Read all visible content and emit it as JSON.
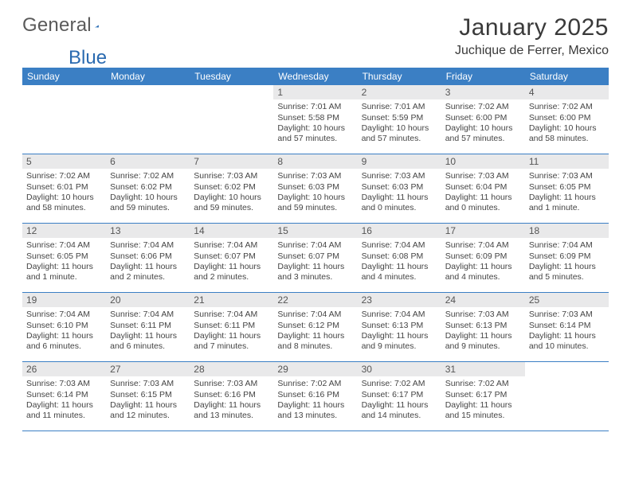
{
  "logo": {
    "text1": "General",
    "text2": "Blue"
  },
  "header": {
    "month_title": "January 2025",
    "location": "Juchique de Ferrer, Mexico"
  },
  "colors": {
    "header_blue": "#3b7fc4",
    "daynum_bg": "#e9e9ea",
    "row_border": "#3b7fc4"
  },
  "calendar": {
    "weekday_labels": [
      "Sunday",
      "Monday",
      "Tuesday",
      "Wednesday",
      "Thursday",
      "Friday",
      "Saturday"
    ],
    "weeks": [
      [
        {
          "day": "",
          "sunrise": "",
          "sunset": "",
          "daylight": ""
        },
        {
          "day": "",
          "sunrise": "",
          "sunset": "",
          "daylight": ""
        },
        {
          "day": "",
          "sunrise": "",
          "sunset": "",
          "daylight": ""
        },
        {
          "day": "1",
          "sunrise": "Sunrise: 7:01 AM",
          "sunset": "Sunset: 5:58 PM",
          "daylight": "Daylight: 10 hours and 57 minutes."
        },
        {
          "day": "2",
          "sunrise": "Sunrise: 7:01 AM",
          "sunset": "Sunset: 5:59 PM",
          "daylight": "Daylight: 10 hours and 57 minutes."
        },
        {
          "day": "3",
          "sunrise": "Sunrise: 7:02 AM",
          "sunset": "Sunset: 6:00 PM",
          "daylight": "Daylight: 10 hours and 57 minutes."
        },
        {
          "day": "4",
          "sunrise": "Sunrise: 7:02 AM",
          "sunset": "Sunset: 6:00 PM",
          "daylight": "Daylight: 10 hours and 58 minutes."
        }
      ],
      [
        {
          "day": "5",
          "sunrise": "Sunrise: 7:02 AM",
          "sunset": "Sunset: 6:01 PM",
          "daylight": "Daylight: 10 hours and 58 minutes."
        },
        {
          "day": "6",
          "sunrise": "Sunrise: 7:02 AM",
          "sunset": "Sunset: 6:02 PM",
          "daylight": "Daylight: 10 hours and 59 minutes."
        },
        {
          "day": "7",
          "sunrise": "Sunrise: 7:03 AM",
          "sunset": "Sunset: 6:02 PM",
          "daylight": "Daylight: 10 hours and 59 minutes."
        },
        {
          "day": "8",
          "sunrise": "Sunrise: 7:03 AM",
          "sunset": "Sunset: 6:03 PM",
          "daylight": "Daylight: 10 hours and 59 minutes."
        },
        {
          "day": "9",
          "sunrise": "Sunrise: 7:03 AM",
          "sunset": "Sunset: 6:03 PM",
          "daylight": "Daylight: 11 hours and 0 minutes."
        },
        {
          "day": "10",
          "sunrise": "Sunrise: 7:03 AM",
          "sunset": "Sunset: 6:04 PM",
          "daylight": "Daylight: 11 hours and 0 minutes."
        },
        {
          "day": "11",
          "sunrise": "Sunrise: 7:03 AM",
          "sunset": "Sunset: 6:05 PM",
          "daylight": "Daylight: 11 hours and 1 minute."
        }
      ],
      [
        {
          "day": "12",
          "sunrise": "Sunrise: 7:04 AM",
          "sunset": "Sunset: 6:05 PM",
          "daylight": "Daylight: 11 hours and 1 minute."
        },
        {
          "day": "13",
          "sunrise": "Sunrise: 7:04 AM",
          "sunset": "Sunset: 6:06 PM",
          "daylight": "Daylight: 11 hours and 2 minutes."
        },
        {
          "day": "14",
          "sunrise": "Sunrise: 7:04 AM",
          "sunset": "Sunset: 6:07 PM",
          "daylight": "Daylight: 11 hours and 2 minutes."
        },
        {
          "day": "15",
          "sunrise": "Sunrise: 7:04 AM",
          "sunset": "Sunset: 6:07 PM",
          "daylight": "Daylight: 11 hours and 3 minutes."
        },
        {
          "day": "16",
          "sunrise": "Sunrise: 7:04 AM",
          "sunset": "Sunset: 6:08 PM",
          "daylight": "Daylight: 11 hours and 4 minutes."
        },
        {
          "day": "17",
          "sunrise": "Sunrise: 7:04 AM",
          "sunset": "Sunset: 6:09 PM",
          "daylight": "Daylight: 11 hours and 4 minutes."
        },
        {
          "day": "18",
          "sunrise": "Sunrise: 7:04 AM",
          "sunset": "Sunset: 6:09 PM",
          "daylight": "Daylight: 11 hours and 5 minutes."
        }
      ],
      [
        {
          "day": "19",
          "sunrise": "Sunrise: 7:04 AM",
          "sunset": "Sunset: 6:10 PM",
          "daylight": "Daylight: 11 hours and 6 minutes."
        },
        {
          "day": "20",
          "sunrise": "Sunrise: 7:04 AM",
          "sunset": "Sunset: 6:11 PM",
          "daylight": "Daylight: 11 hours and 6 minutes."
        },
        {
          "day": "21",
          "sunrise": "Sunrise: 7:04 AM",
          "sunset": "Sunset: 6:11 PM",
          "daylight": "Daylight: 11 hours and 7 minutes."
        },
        {
          "day": "22",
          "sunrise": "Sunrise: 7:04 AM",
          "sunset": "Sunset: 6:12 PM",
          "daylight": "Daylight: 11 hours and 8 minutes."
        },
        {
          "day": "23",
          "sunrise": "Sunrise: 7:04 AM",
          "sunset": "Sunset: 6:13 PM",
          "daylight": "Daylight: 11 hours and 9 minutes."
        },
        {
          "day": "24",
          "sunrise": "Sunrise: 7:03 AM",
          "sunset": "Sunset: 6:13 PM",
          "daylight": "Daylight: 11 hours and 9 minutes."
        },
        {
          "day": "25",
          "sunrise": "Sunrise: 7:03 AM",
          "sunset": "Sunset: 6:14 PM",
          "daylight": "Daylight: 11 hours and 10 minutes."
        }
      ],
      [
        {
          "day": "26",
          "sunrise": "Sunrise: 7:03 AM",
          "sunset": "Sunset: 6:14 PM",
          "daylight": "Daylight: 11 hours and 11 minutes."
        },
        {
          "day": "27",
          "sunrise": "Sunrise: 7:03 AM",
          "sunset": "Sunset: 6:15 PM",
          "daylight": "Daylight: 11 hours and 12 minutes."
        },
        {
          "day": "28",
          "sunrise": "Sunrise: 7:03 AM",
          "sunset": "Sunset: 6:16 PM",
          "daylight": "Daylight: 11 hours and 13 minutes."
        },
        {
          "day": "29",
          "sunrise": "Sunrise: 7:02 AM",
          "sunset": "Sunset: 6:16 PM",
          "daylight": "Daylight: 11 hours and 13 minutes."
        },
        {
          "day": "30",
          "sunrise": "Sunrise: 7:02 AM",
          "sunset": "Sunset: 6:17 PM",
          "daylight": "Daylight: 11 hours and 14 minutes."
        },
        {
          "day": "31",
          "sunrise": "Sunrise: 7:02 AM",
          "sunset": "Sunset: 6:17 PM",
          "daylight": "Daylight: 11 hours and 15 minutes."
        },
        {
          "day": "",
          "sunrise": "",
          "sunset": "",
          "daylight": ""
        }
      ]
    ]
  }
}
